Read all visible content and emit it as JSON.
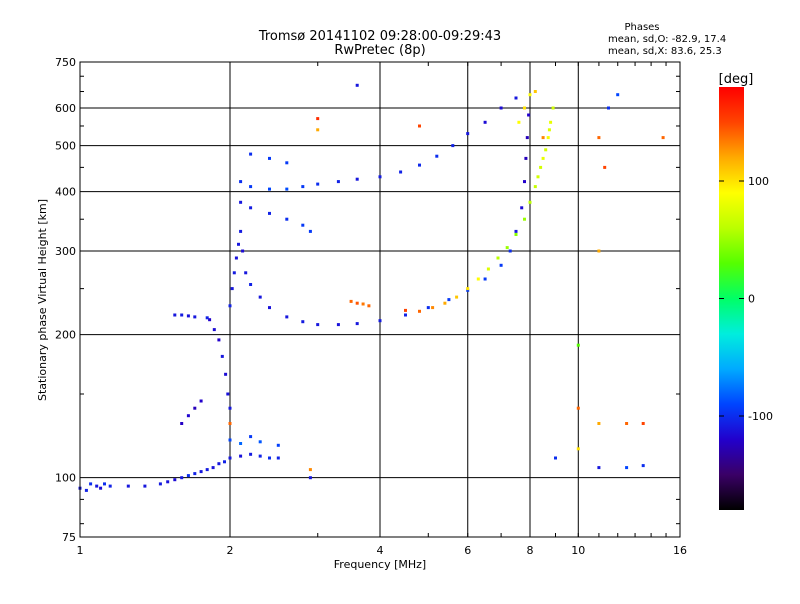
{
  "chart_data": {
    "type": "scatter",
    "title": "Tromsø 20141102 09:28:00-09:29:43",
    "subtitle": "RwPretec (8p)",
    "xlabel": "Frequency [MHz]",
    "ylabel": "Stationary phase Virtual Height [km]",
    "x_scale": "log",
    "y_scale": "log",
    "xlim": [
      1,
      16
    ],
    "ylim": [
      75,
      750
    ],
    "x_ticks": [
      1,
      2,
      4,
      6,
      8,
      10,
      16
    ],
    "x_tick_labels": [
      "1",
      "2",
      "4",
      "6",
      "8",
      "10",
      "16"
    ],
    "y_ticks": [
      75,
      100,
      200,
      300,
      400,
      500,
      600,
      750
    ],
    "y_tick_labels": [
      "75",
      "100",
      "200",
      "300",
      "400",
      "500",
      "600",
      "750"
    ],
    "grid": true,
    "stats": {
      "heading": "Phases",
      "o_line": "mean, sd,O: -82.9, 17.4",
      "x_line": "mean, sd,X:  83.6, 25.3"
    },
    "colorbar": {
      "label": "[deg]",
      "range": [
        -180,
        180
      ],
      "ticks": [
        100,
        0,
        -100
      ],
      "tick_labels": [
        "100",
        "0",
        "-100"
      ],
      "colors": [
        "#000000",
        "#3a0066",
        "#2200cc",
        "#0044ff",
        "#00aaff",
        "#00eedd",
        "#00ff66",
        "#55ff00",
        "#bbff00",
        "#ffff00",
        "#ffaa00",
        "#ff4400",
        "#ff0000"
      ]
    },
    "series": [
      {
        "values": [
          [
            1.0,
            95,
            -110
          ],
          [
            1.03,
            94,
            -105
          ],
          [
            1.05,
            97,
            -100
          ],
          [
            1.08,
            96,
            -110
          ],
          [
            1.1,
            95,
            -115
          ],
          [
            1.12,
            97,
            -100
          ],
          [
            1.15,
            96,
            -105
          ],
          [
            1.25,
            96,
            -110
          ],
          [
            1.35,
            96,
            -110
          ],
          [
            1.45,
            97,
            -108
          ],
          [
            1.5,
            98,
            -112
          ],
          [
            1.55,
            99,
            -115
          ],
          [
            1.6,
            100,
            -110
          ],
          [
            1.65,
            101,
            -100
          ],
          [
            1.7,
            102,
            -105
          ],
          [
            1.75,
            103,
            -110
          ],
          [
            1.8,
            104,
            -108
          ],
          [
            1.85,
            105,
            -112
          ],
          [
            1.9,
            107,
            -110
          ],
          [
            1.95,
            108,
            -105
          ],
          [
            2.0,
            110,
            -110
          ],
          [
            2.1,
            111,
            -112
          ],
          [
            2.2,
            112,
            -108
          ],
          [
            2.3,
            111,
            -105
          ],
          [
            2.4,
            110,
            -100
          ],
          [
            2.5,
            110,
            -105
          ],
          [
            2.0,
            120,
            -90
          ],
          [
            2.1,
            118,
            -80
          ],
          [
            2.2,
            122,
            -95
          ],
          [
            2.3,
            119,
            -85
          ],
          [
            2.5,
            117,
            -92
          ],
          [
            1.82,
            215,
            -120
          ],
          [
            1.86,
            205,
            -115
          ],
          [
            1.9,
            195,
            -120
          ],
          [
            1.93,
            180,
            -110
          ],
          [
            1.96,
            165,
            -115
          ],
          [
            1.98,
            150,
            -112
          ],
          [
            2.0,
            140,
            -110
          ],
          [
            1.75,
            145,
            -120
          ],
          [
            1.7,
            140,
            -125
          ],
          [
            1.65,
            135,
            -118
          ],
          [
            1.6,
            130,
            -122
          ],
          [
            2.0,
            230,
            -105
          ],
          [
            2.02,
            250,
            -110
          ],
          [
            2.04,
            270,
            -108
          ],
          [
            2.06,
            290,
            -112
          ],
          [
            2.08,
            310,
            -110
          ],
          [
            2.1,
            330,
            -108
          ],
          [
            2.12,
            300,
            -115
          ],
          [
            2.15,
            270,
            -110
          ],
          [
            2.2,
            255,
            -105
          ],
          [
            2.3,
            240,
            -110
          ],
          [
            2.4,
            228,
            -112
          ],
          [
            2.6,
            218,
            -110
          ],
          [
            2.8,
            213,
            -108
          ],
          [
            3.0,
            210,
            -110
          ],
          [
            3.3,
            210,
            -112
          ],
          [
            3.6,
            211,
            -110
          ],
          [
            4.0,
            214,
            -108
          ],
          [
            4.5,
            220,
            -105
          ],
          [
            5.0,
            228,
            -100
          ],
          [
            5.5,
            237,
            -95
          ],
          [
            6.0,
            248,
            -95
          ],
          [
            6.5,
            262,
            -95
          ],
          [
            7.0,
            280,
            -95
          ],
          [
            7.3,
            300,
            -100
          ],
          [
            7.5,
            330,
            -110
          ],
          [
            7.7,
            370,
            -115
          ],
          [
            7.8,
            420,
            -120
          ],
          [
            7.85,
            470,
            -125
          ],
          [
            7.9,
            520,
            -125
          ],
          [
            7.95,
            580,
            -120
          ],
          [
            1.55,
            220,
            -110
          ],
          [
            1.6,
            220,
            -108
          ],
          [
            1.65,
            219,
            -112
          ],
          [
            1.7,
            218,
            -110
          ],
          [
            1.8,
            217,
            -105
          ],
          [
            2.1,
            420,
            -100
          ],
          [
            2.2,
            410,
            -95
          ],
          [
            2.4,
            405,
            -90
          ],
          [
            2.6,
            405,
            -88
          ],
          [
            2.8,
            410,
            -95
          ],
          [
            3.0,
            415,
            -100
          ],
          [
            3.3,
            420,
            -105
          ],
          [
            3.6,
            425,
            -110
          ],
          [
            4.0,
            430,
            -108
          ],
          [
            4.4,
            440,
            -105
          ],
          [
            4.8,
            455,
            -102
          ],
          [
            5.2,
            475,
            -100
          ],
          [
            5.6,
            500,
            -105
          ],
          [
            6.0,
            530,
            -110
          ],
          [
            6.5,
            560,
            -115
          ],
          [
            7.0,
            600,
            -115
          ],
          [
            7.5,
            630,
            -110
          ],
          [
            2.2,
            480,
            -100
          ],
          [
            2.4,
            470,
            -95
          ],
          [
            2.6,
            460,
            -95
          ],
          [
            2.1,
            380,
            -110
          ],
          [
            2.2,
            370,
            -108
          ],
          [
            2.4,
            360,
            -105
          ],
          [
            2.6,
            350,
            -100
          ],
          [
            2.8,
            340,
            -95
          ],
          [
            2.9,
            330,
            -95
          ]
        ]
      },
      {
        "values": [
          [
            3.5,
            235,
            140
          ],
          [
            3.6,
            233,
            145
          ],
          [
            3.7,
            232,
            135
          ],
          [
            3.8,
            230,
            140
          ],
          [
            4.5,
            225,
            150
          ],
          [
            4.8,
            224,
            140
          ],
          [
            5.1,
            228,
            130
          ],
          [
            5.4,
            233,
            120
          ],
          [
            5.7,
            240,
            110
          ],
          [
            6.0,
            250,
            100
          ],
          [
            6.3,
            262,
            90
          ],
          [
            6.6,
            275,
            75
          ],
          [
            6.9,
            290,
            60
          ],
          [
            7.2,
            305,
            50
          ],
          [
            7.5,
            325,
            45
          ],
          [
            7.8,
            350,
            50
          ],
          [
            8.0,
            380,
            60
          ],
          [
            8.2,
            410,
            65
          ],
          [
            8.4,
            450,
            70
          ],
          [
            8.6,
            490,
            72
          ],
          [
            8.75,
            540,
            75
          ],
          [
            8.9,
            600,
            70
          ],
          [
            8.8,
            560,
            80
          ],
          [
            8.7,
            520,
            85
          ],
          [
            8.5,
            470,
            80
          ],
          [
            8.3,
            430,
            70
          ],
          [
            7.6,
            560,
            90
          ],
          [
            7.8,
            600,
            100
          ],
          [
            8.0,
            640,
            90
          ],
          [
            8.2,
            650,
            110
          ],
          [
            8.5,
            520,
            130
          ],
          [
            3.0,
            570,
            160
          ],
          [
            3.0,
            540,
            120
          ],
          [
            3.6,
            670,
            -110
          ],
          [
            4.8,
            550,
            150
          ],
          [
            11.0,
            520,
            140
          ],
          [
            11.5,
            600,
            -100
          ],
          [
            12.0,
            640,
            -90
          ],
          [
            14.8,
            520,
            140
          ],
          [
            11.3,
            450,
            150
          ],
          [
            11.0,
            300,
            120
          ],
          [
            10.0,
            190,
            30
          ],
          [
            10.0,
            140,
            140
          ],
          [
            11.0,
            130,
            120
          ],
          [
            12.5,
            130,
            140
          ],
          [
            13.5,
            130,
            150
          ],
          [
            10.0,
            115,
            100
          ],
          [
            9.0,
            110,
            -100
          ],
          [
            11.0,
            105,
            -110
          ],
          [
            12.5,
            105,
            -90
          ],
          [
            13.5,
            106,
            -100
          ],
          [
            2.0,
            130,
            140
          ],
          [
            2.9,
            104,
            130
          ],
          [
            2.9,
            100,
            -110
          ]
        ]
      }
    ]
  }
}
